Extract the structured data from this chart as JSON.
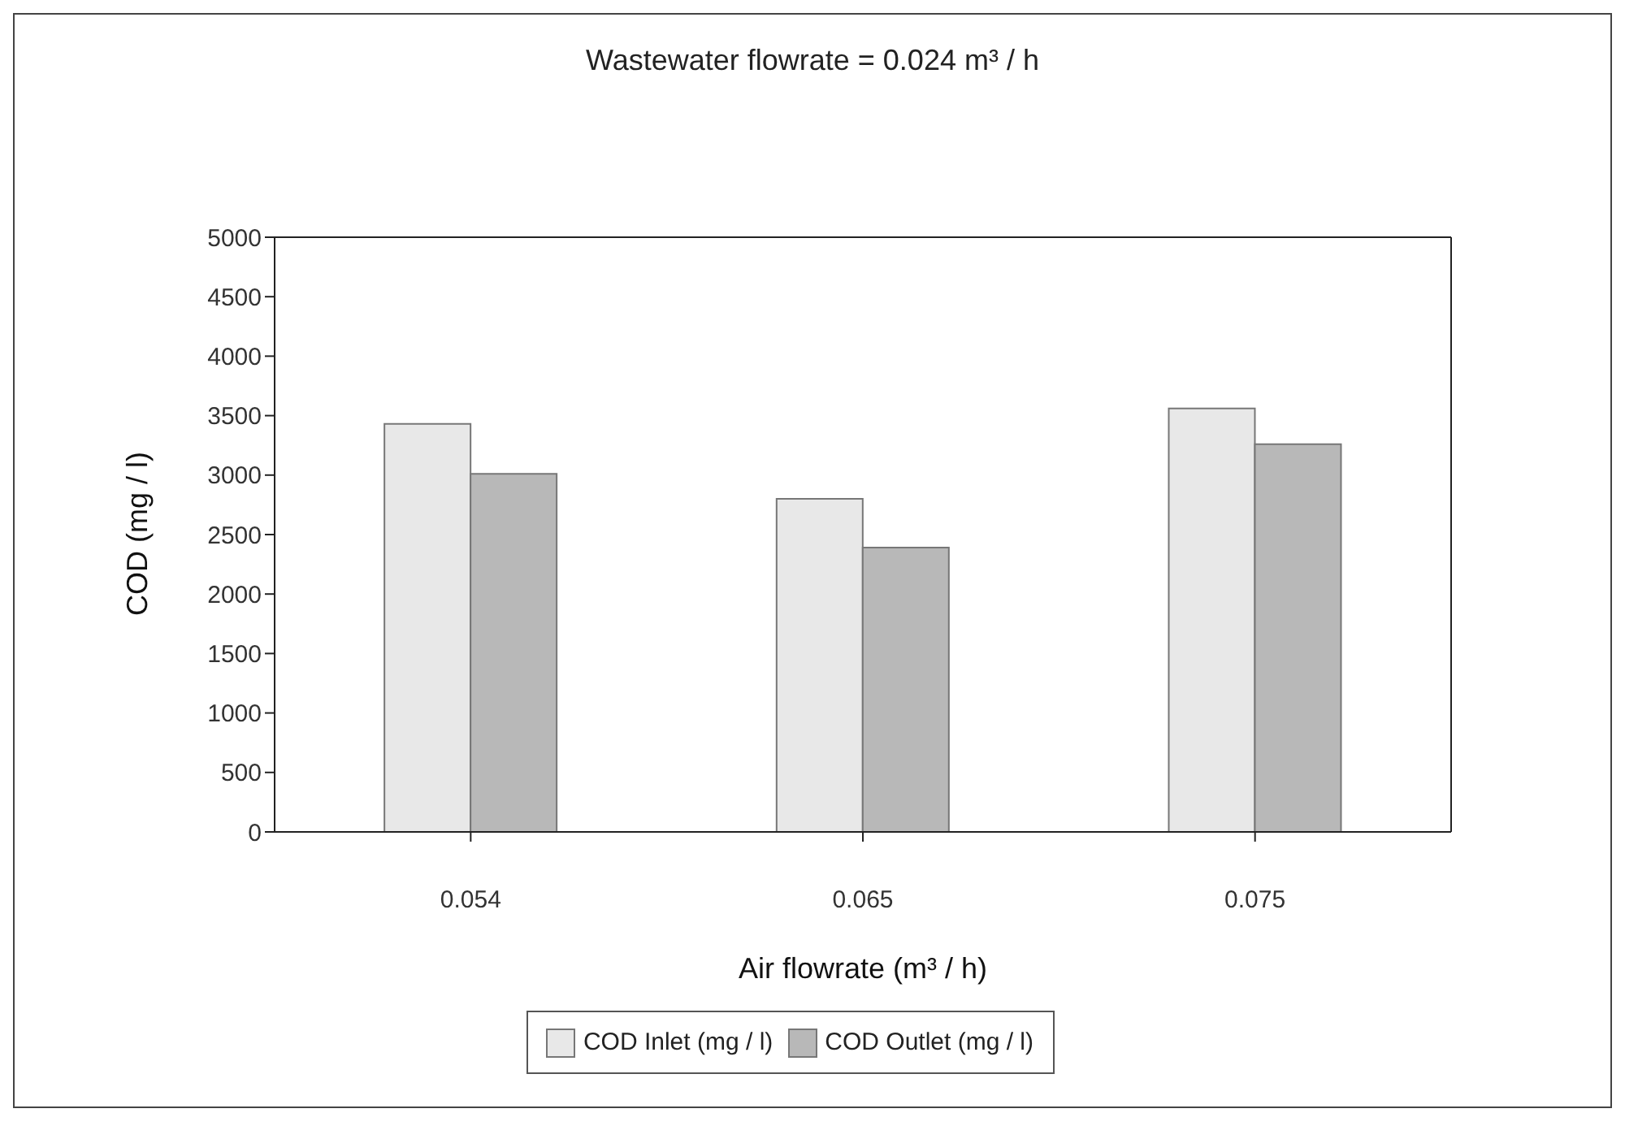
{
  "chart_data": {
    "type": "bar",
    "title": "Wastewater flowrate = 0.024 m³ / h",
    "xlabel": "Air flowrate (m³ / h)",
    "ylabel": "COD (mg / l)",
    "categories": [
      "0.054",
      "0.065",
      "0.075"
    ],
    "series": [
      {
        "name": "COD Inlet (mg / l)",
        "color": "#e8e8e8",
        "values": [
          3430,
          2800,
          3560
        ]
      },
      {
        "name": "COD Outlet (mg / l)",
        "color": "#b8b8b8",
        "values": [
          3010,
          2390,
          3260
        ]
      }
    ],
    "ylim": [
      0,
      5000
    ],
    "yticks": [
      0,
      500,
      1000,
      1500,
      2000,
      2500,
      3000,
      3500,
      4000,
      4500,
      5000
    ],
    "grid": false,
    "legend": "bottom"
  }
}
